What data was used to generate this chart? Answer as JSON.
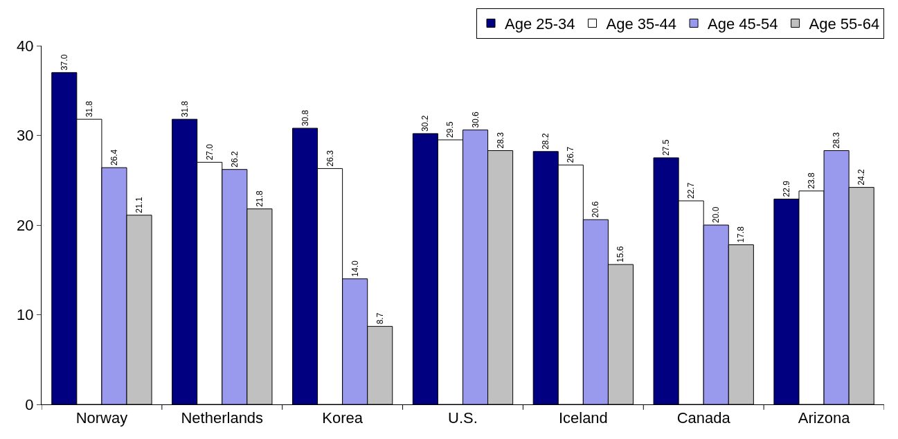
{
  "chart_data": {
    "type": "bar",
    "categories": [
      "Norway",
      "Netherlands",
      "Korea",
      "U.S.",
      "Iceland",
      "Canada",
      "Arizona"
    ],
    "series": [
      {
        "name": "Age 25-34",
        "color": "#000080",
        "values": [
          37.0,
          31.8,
          30.8,
          30.2,
          28.2,
          27.5,
          22.9
        ],
        "value_labels": [
          "37.0",
          "31.8",
          "30.8",
          "30.2",
          "28.2",
          "27.5",
          "22.9"
        ]
      },
      {
        "name": "Age 35-44",
        "color": "#ffffff",
        "values": [
          31.8,
          27.0,
          26.3,
          29.5,
          26.7,
          22.7,
          23.8
        ],
        "value_labels": [
          "31.8",
          "27.0",
          "26.3",
          "29.5",
          "26.7",
          "22.7",
          "23.8"
        ]
      },
      {
        "name": "Age 45-54",
        "color": "#9999ee",
        "values": [
          26.4,
          26.2,
          14.0,
          30.6,
          20.6,
          20.0,
          28.3
        ],
        "value_labels": [
          "26.4",
          "26.2",
          "14.0",
          "30.6",
          "20.6",
          "20.0",
          "28.3"
        ]
      },
      {
        "name": "Age 55-64",
        "color": "#c0c0c0",
        "values": [
          21.1,
          21.8,
          8.7,
          28.3,
          15.6,
          17.8,
          24.2
        ],
        "value_labels": [
          "21.1",
          "21.8",
          "8.7",
          "28.3",
          "15.6",
          "17.8",
          "24.2"
        ]
      }
    ],
    "ylim": [
      0,
      40
    ],
    "yticks": [
      0,
      10,
      20,
      30,
      40
    ],
    "legend": "top right"
  }
}
